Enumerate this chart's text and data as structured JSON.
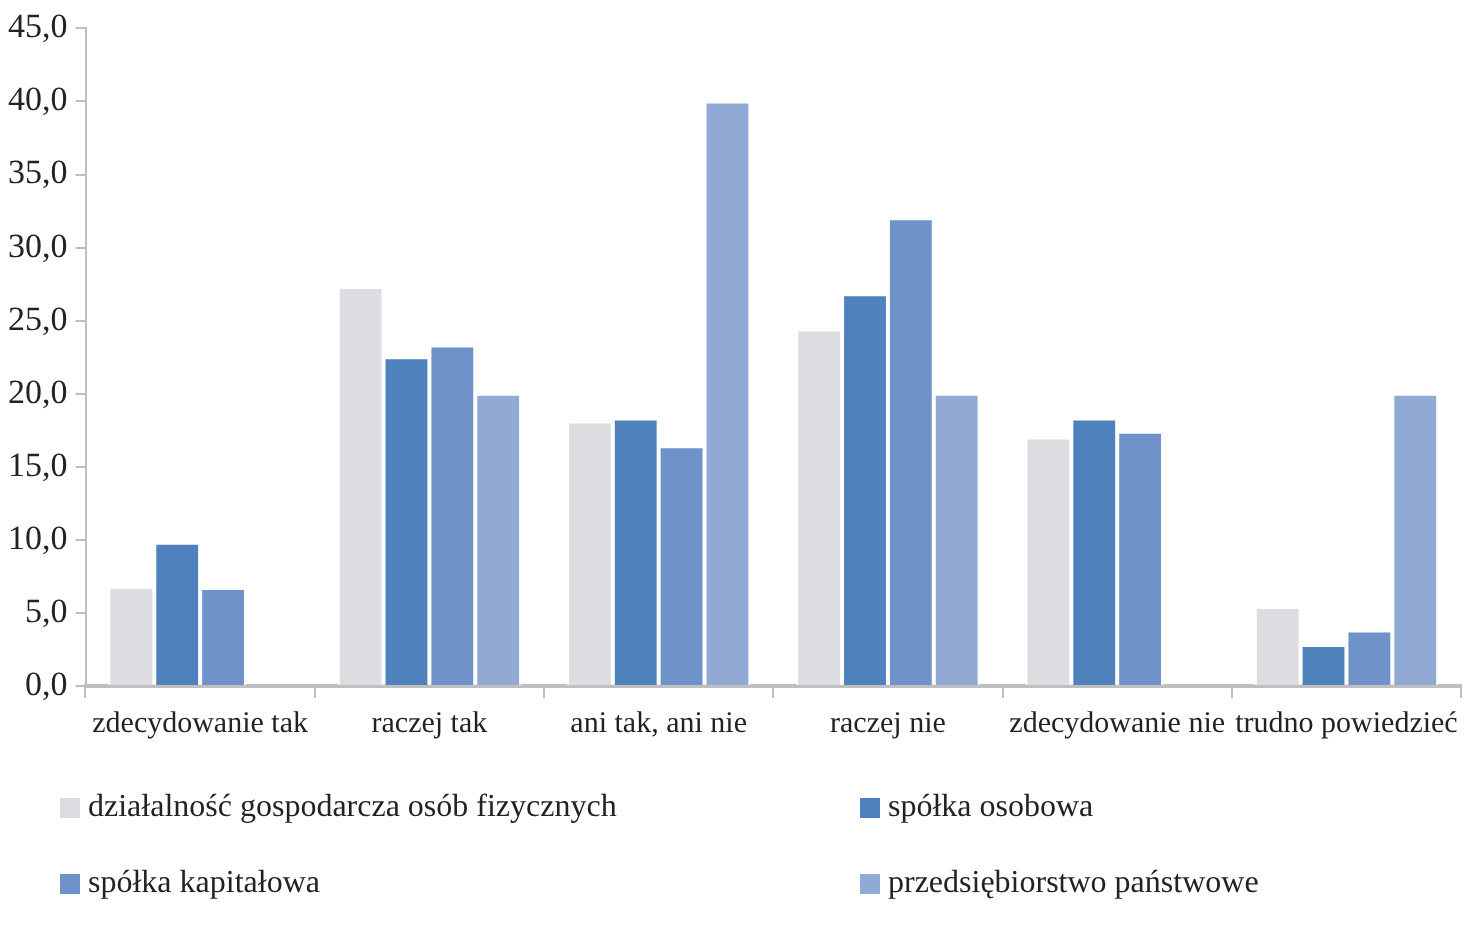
{
  "chart_data": {
    "type": "bar",
    "categories": [
      "zdecydowanie tak",
      "raczej tak",
      "ani tak, ani nie",
      "raczej nie",
      "zdecydowanie nie",
      "trudno powiedzieć"
    ],
    "series": [
      {
        "name": "działalność gospodarcza osób fizycznych",
        "color": "#dcdde0",
        "values": [
          6.8,
          27.3,
          18.1,
          24.4,
          17.0,
          5.4
        ]
      },
      {
        "name": "spółka osobowa",
        "color": "#4f81bd",
        "values": [
          9.8,
          22.5,
          18.3,
          26.8,
          18.3,
          2.8
        ]
      },
      {
        "name": "spółka kapitałowa",
        "color": "#6f93c8",
        "values": [
          6.7,
          23.3,
          16.4,
          32.0,
          17.4,
          3.8
        ]
      },
      {
        "name": "przedsiębiorstwo państwowe",
        "color": "#91a9d5",
        "values": [
          0,
          20.0,
          40.0,
          20.0,
          0,
          20.0
        ]
      }
    ],
    "ylim": [
      0,
      45
    ],
    "yticks": [
      {
        "value": 0,
        "label": "0,0"
      },
      {
        "value": 5,
        "label": "5,0"
      },
      {
        "value": 10,
        "label": "10,0"
      },
      {
        "value": 15,
        "label": "15,0"
      },
      {
        "value": 20,
        "label": "20,0"
      },
      {
        "value": 25,
        "label": "25,0"
      },
      {
        "value": 30,
        "label": "30,0"
      },
      {
        "value": 35,
        "label": "35,0"
      },
      {
        "value": 40,
        "label": "40,0"
      },
      {
        "value": 45,
        "label": "45,0"
      }
    ],
    "grid": false,
    "legend": "bottom"
  }
}
